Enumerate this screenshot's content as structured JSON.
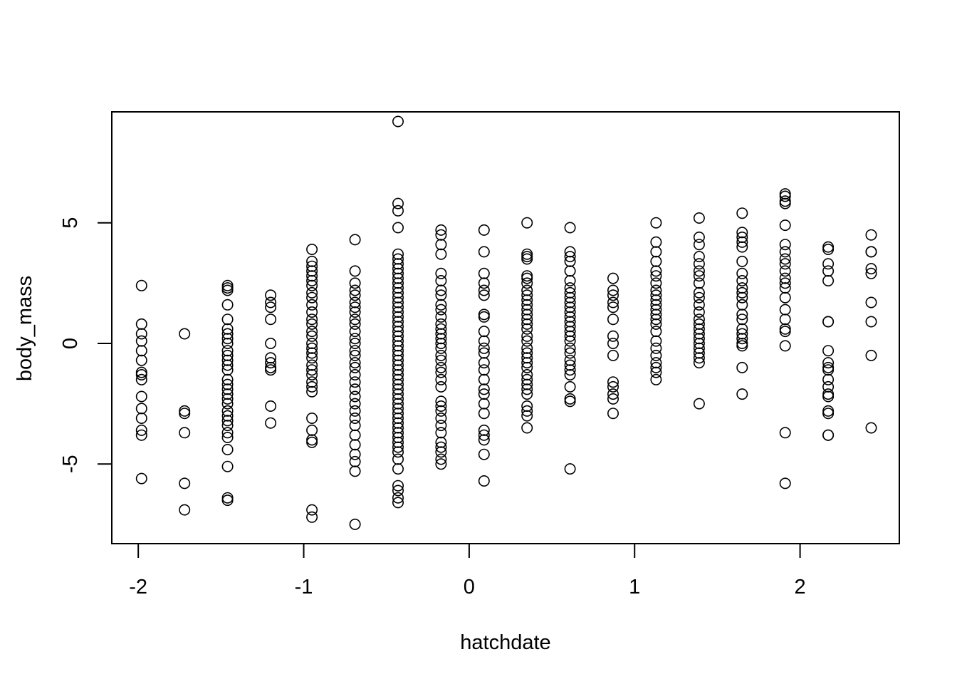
{
  "chart_data": {
    "type": "scatter",
    "title": "",
    "xlabel": "hatchdate",
    "ylabel": "body_mass",
    "xlim": [
      -2.16,
      2.6
    ],
    "ylim": [
      -8.3,
      9.6
    ],
    "grid": false,
    "legend": "none",
    "x_ticks": [
      {
        "value": -2,
        "label": "-2"
      },
      {
        "value": -1,
        "label": "-1"
      },
      {
        "value": 0,
        "label": "0"
      },
      {
        "value": 1,
        "label": "1"
      },
      {
        "value": 2,
        "label": "2"
      }
    ],
    "y_ticks": [
      {
        "value": -5,
        "label": "-5"
      },
      {
        "value": 0,
        "label": "0"
      },
      {
        "value": 5,
        "label": "5"
      }
    ],
    "groups": [
      {
        "x": -1.98,
        "y": [
          2.4,
          0.8,
          0.4,
          0.1,
          -0.3,
          -0.7,
          -1.2,
          -1.3,
          -1.5,
          -2.2,
          -2.7,
          -3.1,
          -3.6,
          -3.8,
          -5.6
        ]
      },
      {
        "x": -1.72,
        "y": [
          0.4,
          -2.8,
          -2.9,
          -3.7,
          -5.8,
          -6.9
        ]
      },
      {
        "x": -1.46,
        "y": [
          2.4,
          2.3,
          2.2,
          1.6,
          1.0,
          0.6,
          0.4,
          0.2,
          0.0,
          -0.3,
          -0.5,
          -0.7,
          -0.9,
          -1.1,
          -1.5,
          -1.7,
          -1.9,
          -2.1,
          -2.3,
          -2.5,
          -2.8,
          -3.0,
          -3.2,
          -3.4,
          -3.7,
          -3.9,
          -4.4,
          -5.1,
          -6.4,
          -6.5
        ]
      },
      {
        "x": -1.2,
        "y": [
          2.0,
          1.7,
          1.5,
          1.0,
          0.0,
          -0.6,
          -0.8,
          -1.0,
          -1.1,
          -2.6,
          -3.3
        ]
      },
      {
        "x": -0.95,
        "y": [
          3.9,
          3.4,
          3.2,
          3.0,
          2.8,
          2.6,
          2.4,
          2.1,
          1.9,
          1.6,
          1.3,
          1.0,
          0.8,
          0.5,
          0.3,
          0.0,
          -0.2,
          -0.4,
          -0.6,
          -0.9,
          -1.1,
          -1.3,
          -1.6,
          -1.8,
          -2.0,
          -3.1,
          -3.6,
          -4.0,
          -4.1,
          -6.9,
          -7.2
        ]
      },
      {
        "x": -0.69,
        "y": [
          4.3,
          3.0,
          2.5,
          2.2,
          2.0,
          1.7,
          1.5,
          1.3,
          1.0,
          0.8,
          0.5,
          0.2,
          0.0,
          -0.3,
          -0.5,
          -0.8,
          -1.0,
          -1.3,
          -1.6,
          -1.9,
          -2.2,
          -2.5,
          -2.8,
          -3.1,
          -3.4,
          -3.8,
          -4.2,
          -4.6,
          -4.9,
          -5.3,
          -7.5
        ]
      },
      {
        "x": -0.43,
        "y": [
          9.2,
          5.8,
          5.5,
          4.8,
          3.7,
          3.5,
          3.3,
          3.1,
          2.9,
          2.7,
          2.5,
          2.3,
          2.1,
          1.9,
          1.7,
          1.5,
          1.3,
          1.1,
          0.9,
          0.7,
          0.5,
          0.3,
          0.1,
          -0.1,
          -0.3,
          -0.5,
          -0.7,
          -0.9,
          -1.1,
          -1.3,
          -1.5,
          -1.7,
          -1.9,
          -2.1,
          -2.3,
          -2.5,
          -2.7,
          -2.9,
          -3.1,
          -3.3,
          -3.5,
          -3.7,
          -3.9,
          -4.1,
          -4.3,
          -4.5,
          -4.8,
          -5.2,
          -5.9,
          -6.1,
          -6.4,
          -6.6
        ]
      },
      {
        "x": -0.17,
        "y": [
          4.7,
          4.5,
          4.1,
          3.7,
          2.9,
          2.6,
          2.2,
          2.0,
          1.6,
          1.4,
          1.1,
          0.8,
          0.6,
          0.4,
          0.2,
          0.0,
          -0.2,
          -0.5,
          -0.7,
          -1.0,
          -1.2,
          -1.5,
          -1.8,
          -2.4,
          -2.6,
          -2.8,
          -3.1,
          -3.4,
          -3.7,
          -4.1,
          -4.3,
          -4.5,
          -4.8,
          -5.0
        ]
      },
      {
        "x": 0.09,
        "y": [
          4.7,
          3.8,
          2.9,
          2.5,
          2.2,
          2.0,
          1.2,
          1.1,
          0.5,
          0.1,
          -0.2,
          -0.4,
          -0.8,
          -1.1,
          -1.5,
          -1.9,
          -2.1,
          -2.5,
          -2.9,
          -3.6,
          -3.8,
          -4.0,
          -4.6,
          -5.7
        ]
      },
      {
        "x": 0.35,
        "y": [
          5.0,
          3.7,
          3.6,
          3.5,
          2.8,
          2.7,
          2.5,
          2.2,
          2.0,
          1.8,
          1.6,
          1.4,
          1.2,
          1.0,
          0.8,
          0.6,
          0.3,
          0.1,
          -0.2,
          -0.4,
          -0.6,
          -0.8,
          -1.0,
          -1.3,
          -1.5,
          -1.7,
          -1.9,
          -2.1,
          -2.6,
          -2.8,
          -3.0,
          -3.5
        ]
      },
      {
        "x": 0.61,
        "y": [
          4.8,
          3.8,
          3.6,
          3.4,
          3.0,
          2.6,
          2.3,
          2.1,
          1.9,
          1.7,
          1.5,
          1.3,
          1.1,
          0.9,
          0.7,
          0.5,
          0.3,
          0.1,
          -0.2,
          -0.4,
          -0.7,
          -0.9,
          -1.1,
          -1.3,
          -1.8,
          -2.3,
          -2.4,
          -5.2
        ]
      },
      {
        "x": 0.87,
        "y": [
          2.7,
          2.2,
          2.0,
          1.7,
          1.5,
          1.0,
          0.3,
          0.0,
          -0.5,
          -1.6,
          -1.8,
          -2.1,
          -2.3,
          -2.9
        ]
      },
      {
        "x": 1.13,
        "y": [
          5.0,
          4.2,
          3.8,
          3.4,
          3.0,
          2.8,
          2.5,
          2.2,
          2.0,
          1.8,
          1.6,
          1.4,
          1.2,
          1.0,
          0.8,
          0.5,
          0.1,
          -0.2,
          -0.5,
          -0.8,
          -1.0,
          -1.2,
          -1.5
        ]
      },
      {
        "x": 1.39,
        "y": [
          5.2,
          4.4,
          4.1,
          3.6,
          3.3,
          3.0,
          2.8,
          2.5,
          2.1,
          1.9,
          1.6,
          1.3,
          1.0,
          0.8,
          0.6,
          0.4,
          0.2,
          0.0,
          -0.2,
          -0.4,
          -0.6,
          -0.8,
          -2.5
        ]
      },
      {
        "x": 1.65,
        "y": [
          5.4,
          4.6,
          4.4,
          4.2,
          4.0,
          3.4,
          2.9,
          2.6,
          2.3,
          2.1,
          1.9,
          1.6,
          1.2,
          1.0,
          0.6,
          0.4,
          0.2,
          0.0,
          -0.1,
          -1.0,
          -2.1
        ]
      },
      {
        "x": 1.91,
        "y": [
          6.2,
          6.1,
          5.9,
          5.8,
          4.9,
          4.1,
          3.8,
          3.5,
          3.3,
          3.0,
          2.7,
          2.5,
          2.3,
          1.9,
          1.4,
          1.0,
          0.6,
          0.5,
          -0.1,
          -3.7,
          -5.8
        ]
      },
      {
        "x": 2.17,
        "y": [
          4.0,
          3.9,
          3.3,
          3.0,
          2.6,
          0.9,
          0.9,
          -0.3,
          -0.8,
          -1.0,
          -1.1,
          -1.5,
          -1.8,
          -2.1,
          -2.2,
          -2.8,
          -2.9,
          -3.8,
          -3.8
        ]
      },
      {
        "x": 2.43,
        "y": [
          4.5,
          3.8,
          3.8,
          3.1,
          2.9,
          1.7,
          0.9,
          -0.5,
          -3.5
        ]
      }
    ]
  }
}
